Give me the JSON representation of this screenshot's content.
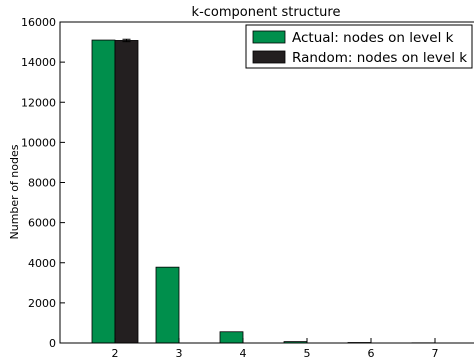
{
  "chart_data": {
    "type": "bar",
    "title": "k-component structure",
    "xlabel": "",
    "ylabel": "Number of nodes",
    "categories": [
      "2",
      "3",
      "4",
      "5",
      "6",
      "7"
    ],
    "series": [
      {
        "name": "Actual: nodes on level k",
        "color": "#008f4c",
        "values": [
          15100,
          3780,
          560,
          70,
          25,
          10
        ],
        "errors": [
          0,
          0,
          0,
          0,
          0,
          0
        ]
      },
      {
        "name": "Random: nodes on level k",
        "color": "#231f20",
        "values": [
          15080,
          0,
          0,
          0,
          0,
          0
        ],
        "errors": [
          60,
          0,
          0,
          0,
          0,
          0
        ]
      }
    ],
    "ylim": [
      0,
      16000
    ],
    "yticks": [
      "0",
      "2000",
      "4000",
      "6000",
      "8000",
      "10000",
      "12000",
      "14000",
      "16000"
    ],
    "grid": false,
    "legend_position": "top-right"
  }
}
